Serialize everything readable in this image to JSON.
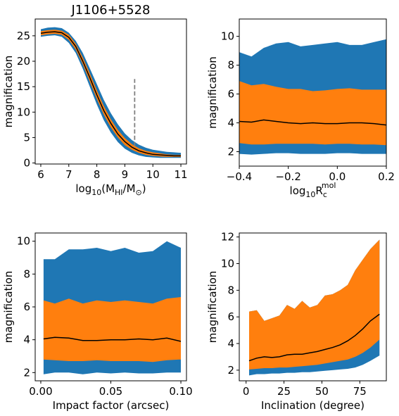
{
  "figure": {
    "colors": {
      "outer_band": "#1f77b4",
      "inner_band": "#ff7f0e",
      "median_line": "#000000",
      "marker_line": "#808080"
    }
  },
  "chart_data": [
    {
      "type": "area",
      "title": "J1106+5528",
      "xlabel": "log10(MHI/M⊙)",
      "ylabel": "magnification",
      "xlim": [
        5.8,
        11.2
      ],
      "ylim": [
        -0.2,
        28.3
      ],
      "xticks": [
        6,
        7,
        8,
        9,
        10,
        11
      ],
      "yticks": [
        0,
        5,
        10,
        15,
        20,
        25
      ],
      "x": [
        6.0,
        6.25,
        6.5,
        6.75,
        7.0,
        7.25,
        7.5,
        7.75,
        8.0,
        8.25,
        8.5,
        8.75,
        9.0,
        9.25,
        9.5,
        9.75,
        10.0,
        10.25,
        10.5,
        10.75,
        11.0
      ],
      "series": [
        {
          "role": "outer_band",
          "low": [
            24.8,
            25.0,
            25.1,
            24.8,
            23.6,
            21.6,
            18.5,
            15.0,
            11.5,
            8.4,
            6.0,
            4.1,
            2.8,
            2.0,
            1.5,
            1.2,
            1.1,
            1.0,
            1.0,
            1.0,
            1.0
          ],
          "high": [
            26.3,
            26.6,
            26.7,
            26.5,
            25.6,
            24.0,
            21.6,
            18.6,
            15.5,
            12.4,
            9.8,
            7.6,
            5.8,
            4.5,
            3.6,
            3.0,
            2.6,
            2.4,
            2.2,
            2.1,
            2.0
          ]
        },
        {
          "role": "inner_band",
          "low": [
            25.1,
            25.3,
            25.4,
            25.2,
            24.2,
            22.3,
            19.4,
            16.0,
            12.6,
            9.5,
            7.0,
            5.0,
            3.5,
            2.6,
            2.0,
            1.6,
            1.4,
            1.3,
            1.2,
            1.2,
            1.2
          ],
          "high": [
            25.9,
            26.1,
            26.2,
            26.0,
            25.2,
            23.4,
            20.7,
            17.6,
            14.3,
            11.2,
            8.6,
            6.5,
            4.9,
            3.7,
            2.9,
            2.4,
            2.1,
            1.9,
            1.7,
            1.6,
            1.6
          ]
        },
        {
          "role": "median",
          "values": [
            25.5,
            25.7,
            25.8,
            25.6,
            24.7,
            22.9,
            20.0,
            16.8,
            13.4,
            10.3,
            7.8,
            5.7,
            4.2,
            3.1,
            2.4,
            2.0,
            1.7,
            1.6,
            1.5,
            1.4,
            1.4
          ]
        }
      ],
      "marker": {
        "x": 9.35,
        "y_range": [
          3.3,
          16.5
        ]
      }
    },
    {
      "type": "area",
      "title": "",
      "xlabel": "log10R",
      "xlabel_sub": "c",
      "xlabel_sup": "mol",
      "ylabel": "magnification",
      "xlim": [
        -0.4,
        0.2
      ],
      "ylim": [
        1.0,
        11.2
      ],
      "xticks": [
        -0.4,
        -0.2,
        0.0,
        0.2
      ],
      "xticklabels": [
        "−0.4",
        "−0.2",
        "0.0",
        "0.2"
      ],
      "yticks": [
        2,
        4,
        6,
        8,
        10
      ],
      "x": [
        -0.4,
        -0.35,
        -0.3,
        -0.25,
        -0.2,
        -0.15,
        -0.1,
        -0.05,
        0.0,
        0.05,
        0.1,
        0.15,
        0.2
      ],
      "series": [
        {
          "role": "outer_band",
          "low": [
            1.85,
            1.8,
            1.85,
            1.9,
            1.9,
            1.85,
            1.85,
            1.85,
            1.9,
            1.9,
            1.85,
            1.85,
            1.85
          ],
          "high": [
            8.9,
            8.6,
            9.2,
            9.5,
            9.6,
            9.3,
            9.4,
            9.5,
            9.6,
            9.4,
            9.4,
            9.6,
            9.8
          ]
        },
        {
          "role": "inner_band",
          "low": [
            2.6,
            2.5,
            2.5,
            2.55,
            2.55,
            2.55,
            2.55,
            2.5,
            2.55,
            2.55,
            2.5,
            2.5,
            2.45
          ],
          "high": [
            6.9,
            6.6,
            6.7,
            6.5,
            6.35,
            6.35,
            6.2,
            6.25,
            6.35,
            6.4,
            6.3,
            6.3,
            6.3
          ]
        },
        {
          "role": "median",
          "values": [
            4.1,
            4.05,
            4.2,
            4.1,
            4.0,
            3.95,
            4.0,
            3.95,
            3.95,
            4.0,
            4.0,
            3.95,
            3.85
          ]
        }
      ]
    },
    {
      "type": "area",
      "title": "",
      "xlabel": "Impact factor (arcsec)",
      "ylabel": "magnification",
      "xlim": [
        -0.004,
        0.104
      ],
      "ylim": [
        1.5,
        10.5
      ],
      "xticks": [
        0.0,
        0.05,
        0.1
      ],
      "xticklabels": [
        "0.00",
        "0.05",
        "0.10"
      ],
      "yticks": [
        2,
        4,
        6,
        8,
        10
      ],
      "x": [
        0.002,
        0.01,
        0.02,
        0.03,
        0.04,
        0.05,
        0.06,
        0.07,
        0.08,
        0.09,
        0.1
      ],
      "series": [
        {
          "role": "outer_band",
          "low": [
            1.9,
            2.0,
            2.0,
            1.9,
            2.0,
            1.95,
            2.0,
            1.95,
            1.95,
            2.0,
            2.0
          ],
          "high": [
            8.9,
            8.9,
            9.5,
            9.5,
            9.6,
            9.4,
            9.6,
            9.3,
            9.4,
            10.0,
            9.6
          ]
        },
        {
          "role": "inner_band",
          "low": [
            2.8,
            2.75,
            2.7,
            2.7,
            2.75,
            2.7,
            2.7,
            2.7,
            2.65,
            2.75,
            2.8
          ],
          "high": [
            6.4,
            6.2,
            6.5,
            6.2,
            6.4,
            6.3,
            6.4,
            6.3,
            6.2,
            6.5,
            6.6
          ]
        },
        {
          "role": "median",
          "values": [
            4.05,
            4.15,
            4.1,
            3.95,
            3.95,
            4.0,
            4.0,
            4.05,
            4.0,
            4.1,
            3.9
          ]
        }
      ]
    },
    {
      "type": "area",
      "title": "",
      "xlabel": "Inclination (degree)",
      "ylabel": "magnification",
      "xlim": [
        -4.5,
        92.5
      ],
      "ylim": [
        1.2,
        12.3
      ],
      "xticks": [
        0,
        25,
        50,
        75
      ],
      "yticks": [
        2,
        4,
        6,
        8,
        10,
        12
      ],
      "x": [
        2,
        7,
        12,
        17,
        22,
        27,
        32,
        37,
        42,
        47,
        52,
        57,
        62,
        67,
        72,
        77,
        82,
        88
      ],
      "series": [
        {
          "role": "outer_band",
          "low": [
            1.6,
            1.7,
            1.7,
            1.75,
            1.75,
            1.8,
            1.8,
            1.85,
            1.85,
            1.9,
            1.95,
            2.0,
            2.05,
            2.1,
            2.2,
            2.4,
            2.7,
            3.1
          ],
          "high": [
            6.4,
            6.5,
            5.7,
            5.9,
            6.1,
            6.9,
            6.6,
            7.2,
            6.7,
            6.9,
            7.6,
            7.7,
            8.0,
            8.4,
            9.5,
            10.3,
            11.1,
            11.8
          ]
        },
        {
          "role": "inner_band",
          "low": [
            2.05,
            2.1,
            2.15,
            2.15,
            2.2,
            2.2,
            2.25,
            2.3,
            2.35,
            2.4,
            2.5,
            2.6,
            2.7,
            2.8,
            3.0,
            3.3,
            3.7,
            4.3
          ]
        },
        {
          "role": "median",
          "values": [
            2.7,
            2.9,
            3.0,
            2.95,
            3.0,
            3.15,
            3.2,
            3.2,
            3.3,
            3.4,
            3.55,
            3.7,
            3.9,
            4.2,
            4.6,
            5.1,
            5.7,
            6.2
          ]
        }
      ]
    }
  ]
}
